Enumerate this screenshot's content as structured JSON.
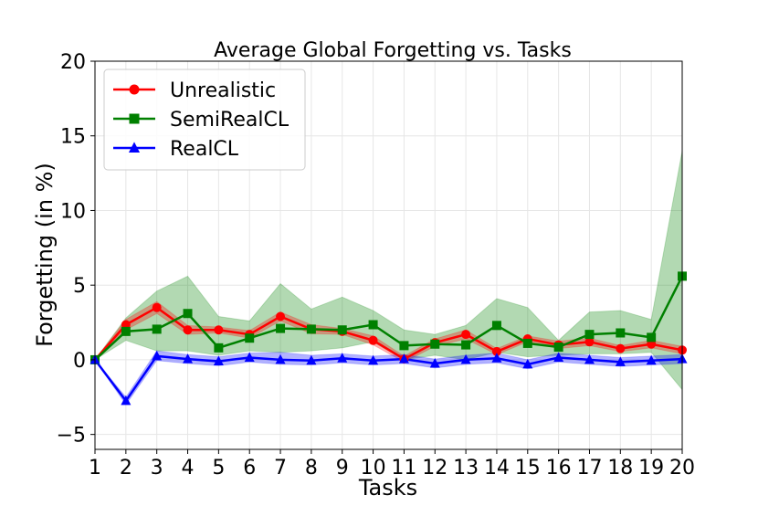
{
  "chart_data": {
    "type": "line",
    "title": "Average Global Forgetting vs. Tasks",
    "xlabel": "Tasks",
    "ylabel": "Forgetting (in %)",
    "x": [
      1,
      2,
      3,
      4,
      5,
      6,
      7,
      8,
      9,
      10,
      11,
      12,
      13,
      14,
      15,
      16,
      17,
      18,
      19,
      20
    ],
    "xlim": [
      1,
      20
    ],
    "ylim": [
      -6,
      20
    ],
    "yticks": [
      -5,
      0,
      5,
      10,
      15,
      20
    ],
    "grid": true,
    "legend_position": "top-left",
    "series": [
      {
        "name": "Unrealistic",
        "color": "#ff0000",
        "marker": "circle",
        "values": [
          0.0,
          2.35,
          3.5,
          2.0,
          2.0,
          1.7,
          2.9,
          2.05,
          1.9,
          1.3,
          0.05,
          1.15,
          1.7,
          0.55,
          1.4,
          1.0,
          1.2,
          0.75,
          1.05,
          0.65
        ],
        "lower": [
          0.0,
          2.0,
          3.1,
          1.7,
          1.8,
          1.45,
          2.6,
          1.75,
          1.7,
          1.0,
          -0.15,
          0.9,
          1.4,
          0.35,
          1.2,
          0.75,
          0.95,
          0.55,
          0.8,
          0.4
        ],
        "upper": [
          0.0,
          2.7,
          3.9,
          2.3,
          2.2,
          1.95,
          3.2,
          2.35,
          2.1,
          1.6,
          0.25,
          1.4,
          2.0,
          0.75,
          1.6,
          1.25,
          1.45,
          0.95,
          1.3,
          0.9
        ]
      },
      {
        "name": "SemiRealCL",
        "color": "#008000",
        "marker": "square",
        "values": [
          0.0,
          1.9,
          2.05,
          3.1,
          0.8,
          1.45,
          2.1,
          2.05,
          2.0,
          2.35,
          0.95,
          1.05,
          1.0,
          2.3,
          1.1,
          0.85,
          1.7,
          1.8,
          1.5,
          5.6
        ],
        "lower": [
          0.0,
          1.3,
          0.6,
          0.6,
          0.3,
          0.6,
          0.5,
          0.6,
          0.8,
          1.2,
          0.0,
          0.3,
          0.0,
          0.5,
          0.2,
          0.3,
          0.4,
          0.4,
          0.5,
          -2.0
        ],
        "upper": [
          0.0,
          2.8,
          4.6,
          5.6,
          2.9,
          2.6,
          5.1,
          3.4,
          4.2,
          3.3,
          2.0,
          1.7,
          2.3,
          4.1,
          3.5,
          1.3,
          3.2,
          3.3,
          2.7,
          14.0
        ]
      },
      {
        "name": "RealCL",
        "color": "#0000ff",
        "marker": "triangle",
        "values": [
          0.0,
          -2.75,
          0.25,
          0.05,
          -0.1,
          0.15,
          0.0,
          -0.05,
          0.1,
          -0.05,
          0.05,
          -0.25,
          0.0,
          0.1,
          -0.3,
          0.15,
          0.0,
          -0.15,
          -0.05,
          0.05
        ],
        "lower": [
          0.0,
          -3.0,
          -0.05,
          -0.25,
          -0.4,
          -0.15,
          -0.3,
          -0.35,
          -0.2,
          -0.35,
          -0.25,
          -0.55,
          -0.3,
          -0.2,
          -0.6,
          -0.15,
          -0.3,
          -0.45,
          -0.35,
          -0.25
        ],
        "upper": [
          0.0,
          -2.5,
          0.6,
          0.35,
          0.2,
          0.45,
          0.5,
          0.3,
          0.4,
          0.25,
          0.35,
          0.05,
          0.3,
          0.45,
          0.0,
          0.45,
          0.3,
          0.15,
          0.25,
          0.35
        ]
      }
    ]
  }
}
